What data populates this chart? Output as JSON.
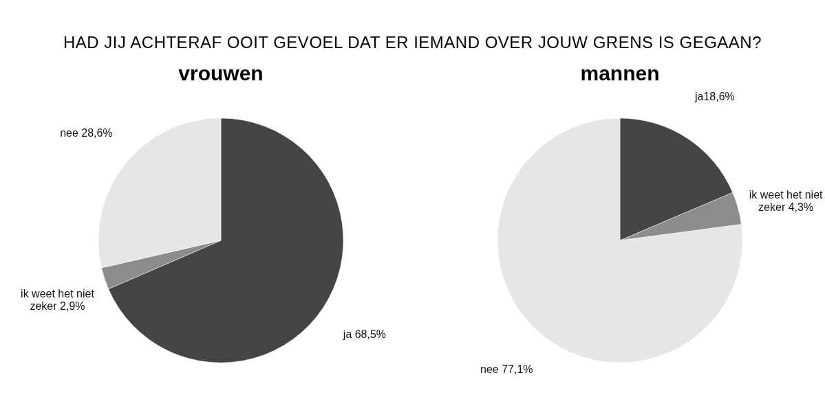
{
  "chart_data": [
    {
      "type": "pie",
      "title": "vrouwen",
      "categories": [
        "ja 68,5%",
        "ik weet het niet\nzeker 2,9%",
        "nee 28,6%"
      ],
      "values": [
        68.5,
        2.9,
        28.6
      ],
      "colors": [
        "#444444",
        "#8c8c8c",
        "#e6e6e6"
      ],
      "legend": false
    },
    {
      "type": "pie",
      "title": "mannen",
      "categories": [
        "ja18,6%",
        "ik weet het niet\nzeker 4,3%",
        "nee 77,1%"
      ],
      "values": [
        18.6,
        4.3,
        77.1
      ],
      "colors": [
        "#444444",
        "#8c8c8c",
        "#e6e6e6"
      ],
      "legend": false,
      "annotations": [
        "HAD JIJ ACHTERAF OOIT GEVOEL DAT ER IEMAND OVER JOUW GRENS IS GEGAAN?"
      ]
    }
  ]
}
